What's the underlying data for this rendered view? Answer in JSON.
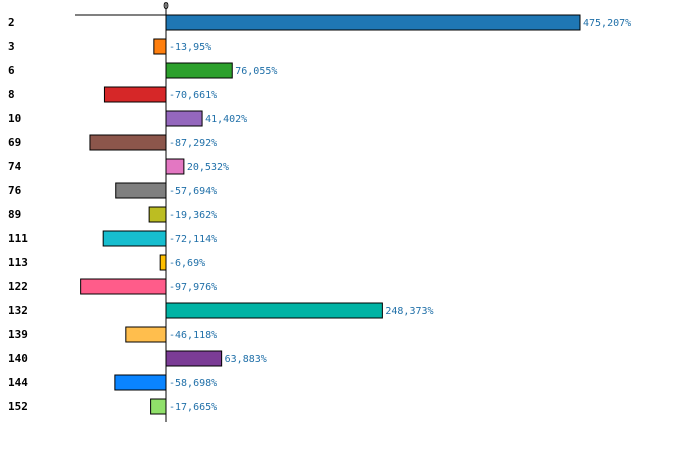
{
  "chart_data": {
    "type": "bar",
    "orientation": "horizontal",
    "title": "",
    "xlabel": "",
    "ylabel": "",
    "grid": false,
    "x_tick_labels": [
      "0"
    ],
    "categories": [
      "2",
      "3",
      "6",
      "8",
      "10",
      "69",
      "74",
      "76",
      "89",
      "111",
      "113",
      "122",
      "132",
      "139",
      "140",
      "144",
      "152"
    ],
    "values": [
      475.207,
      -13.95,
      76.055,
      -70.661,
      41.402,
      -87.292,
      20.532,
      -57.694,
      -19.362,
      -72.114,
      -6.69,
      -97.976,
      248.373,
      -46.118,
      63.883,
      -58.698,
      -17.665
    ],
    "value_labels": [
      "475,207%",
      "-13,95%",
      "76,055%",
      "-70,661%",
      "41,402%",
      "-87,292%",
      "20,532%",
      "-57,694%",
      "-19,362%",
      "-72,114%",
      "-6,69%",
      "-97,976%",
      "248,373%",
      "-46,118%",
      "63,883%",
      "-58,698%",
      "-17,665%"
    ],
    "colors": [
      "#1f77b4",
      "#ff7f0e",
      "#2ca02c",
      "#d62728",
      "#9467bd",
      "#8c564b",
      "#e377c2",
      "#7f7f7f",
      "#bcbd22",
      "#17becf",
      "#ffbf00",
      "#ff5c8a",
      "#00b3a4",
      "#ffbe4d",
      "#7b3c96",
      "#0a84ff",
      "#90e06a"
    ],
    "value_label_color": "#1f6fa8",
    "xlim": [
      -103,
      475.207
    ]
  }
}
